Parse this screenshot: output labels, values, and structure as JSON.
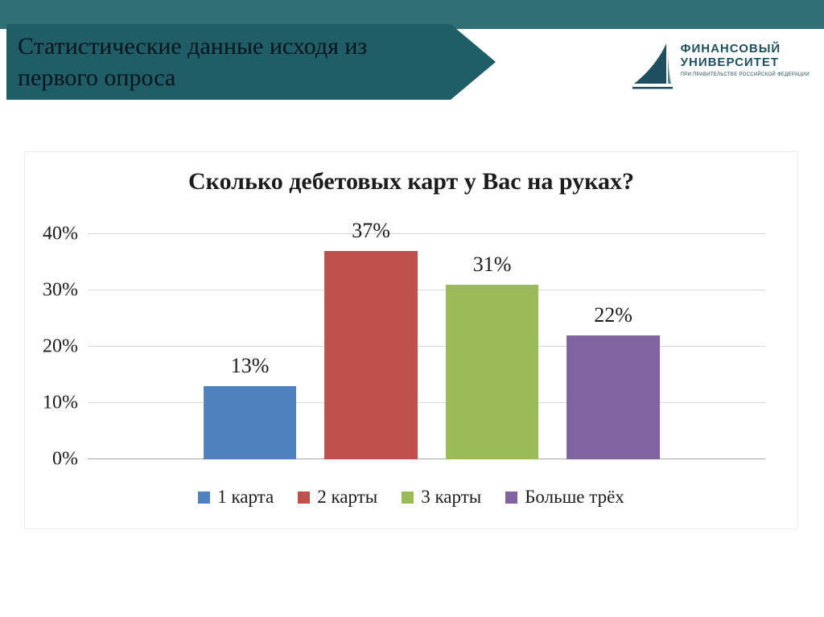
{
  "slide": {
    "title_line1": "Статистические данные исходя из",
    "title_line2": "первого опроса"
  },
  "logo": {
    "line1": "ФИНАНСОВЫЙ",
    "line2": "УНИВЕРСИТЕТ",
    "subtitle": "ПРИ ПРАВИТЕЛЬСТВЕ РОССИЙСКОЙ ФЕДЕРАЦИИ"
  },
  "colors": {
    "band": "#2f6f75",
    "banner": "#1f5e67",
    "logo": "#1d4f5f",
    "grid": "#d9d9d9",
    "axis": "#a8a8a8"
  },
  "chart_data": {
    "type": "bar",
    "title": "Сколько дебетовых карт у Вас на руках?",
    "categories": [
      "1 карта",
      "2 карты",
      "3 карты",
      "Больше трёх"
    ],
    "values": [
      13,
      37,
      31,
      22
    ],
    "value_labels": [
      "13%",
      "37%",
      "31%",
      "22%"
    ],
    "series_colors": [
      "#4f81bd",
      "#c0504d",
      "#9bbb59",
      "#8064a2"
    ],
    "xlabel": "",
    "ylabel": "",
    "ylim": [
      0,
      40
    ],
    "yticks": [
      "0%",
      "10%",
      "20%",
      "30%",
      "40%"
    ],
    "ytick_values": [
      0,
      10,
      20,
      30,
      40
    ],
    "grid": true,
    "legend_position": "bottom"
  }
}
